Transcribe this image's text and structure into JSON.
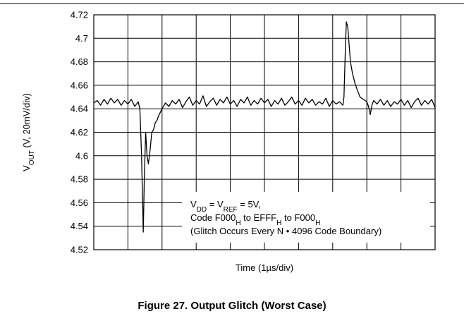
{
  "chart_data": {
    "type": "line",
    "ylabel": [
      {
        "text": "V"
      },
      {
        "sub": "OUT"
      },
      {
        "text": " (V, 20mV/div)"
      }
    ],
    "xlabel": "Time (1µs/div)",
    "caption": "Figure 27. Output Glitch (Worst Case)",
    "annotation": [
      [
        {
          "text": "V"
        },
        {
          "sub": "DD"
        },
        {
          "text": " = V"
        },
        {
          "sub": "REF"
        },
        {
          "text": " = 5V,"
        }
      ],
      [
        {
          "text": "Code F000"
        },
        {
          "sub": "H"
        },
        {
          "text": " to EFFF"
        },
        {
          "sub": "H"
        },
        {
          "text": " to F000"
        },
        {
          "sub": "H"
        }
      ],
      [
        {
          "text": "(Glitch Occurs Every N • 4096 Code Boundary)"
        }
      ]
    ],
    "xlim": [
      0,
      10
    ],
    "xticks": [
      0,
      1,
      2,
      3,
      4,
      5,
      6,
      7,
      8,
      9,
      10
    ],
    "xtick_labels": false,
    "ylim": [
      4.52,
      4.72
    ],
    "yticks": [
      4.52,
      4.54,
      4.56,
      4.58,
      4.6,
      4.62,
      4.64,
      4.66,
      4.68,
      4.7,
      4.72
    ],
    "grid": true,
    "color": "#000000",
    "x": [
      0,
      0.1,
      0.2,
      0.3,
      0.4,
      0.5,
      0.6,
      0.7,
      0.8,
      0.9,
      1,
      1.1,
      1.2,
      1.3,
      1.35,
      1.4,
      1.45,
      1.48,
      1.52,
      1.56,
      1.6,
      1.65,
      1.7,
      1.75,
      1.8,
      1.85,
      1.9,
      2,
      2.1,
      2.2,
      2.3,
      2.4,
      2.5,
      2.6,
      2.7,
      2.8,
      2.9,
      3,
      3.1,
      3.2,
      3.3,
      3.4,
      3.5,
      3.6,
      3.7,
      3.8,
      3.9,
      4,
      4.1,
      4.2,
      4.3,
      4.4,
      4.5,
      4.6,
      4.7,
      4.8,
      4.9,
      5,
      5.1,
      5.2,
      5.3,
      5.4,
      5.5,
      5.6,
      5.7,
      5.8,
      5.9,
      6,
      6.1,
      6.2,
      6.3,
      6.4,
      6.5,
      6.6,
      6.7,
      6.8,
      6.9,
      7,
      7.1,
      7.2,
      7.3,
      7.33,
      7.37,
      7.4,
      7.44,
      7.48,
      7.52,
      7.58,
      7.65,
      7.72,
      7.8,
      7.9,
      8,
      8.05,
      8.1,
      8.15,
      8.2,
      8.3,
      8.4,
      8.5,
      8.6,
      8.7,
      8.8,
      8.9,
      9,
      9.1,
      9.2,
      9.3,
      9.4,
      9.5,
      9.6,
      9.7,
      9.8,
      9.9,
      10
    ],
    "values": [
      4.645,
      4.647,
      4.643,
      4.648,
      4.644,
      4.649,
      4.645,
      4.648,
      4.643,
      4.647,
      4.644,
      4.648,
      4.642,
      4.646,
      4.64,
      4.6,
      4.535,
      4.58,
      4.62,
      4.6,
      4.593,
      4.605,
      4.62,
      4.622,
      4.628,
      4.63,
      4.634,
      4.64,
      4.645,
      4.642,
      4.647,
      4.644,
      4.648,
      4.641,
      4.646,
      4.65,
      4.643,
      4.647,
      4.644,
      4.651,
      4.642,
      4.646,
      4.649,
      4.643,
      4.648,
      4.645,
      4.65,
      4.644,
      4.647,
      4.642,
      4.648,
      4.645,
      4.65,
      4.643,
      4.647,
      4.644,
      4.649,
      4.645,
      4.648,
      4.642,
      4.647,
      4.644,
      4.649,
      4.643,
      4.646,
      4.65,
      4.644,
      4.647,
      4.643,
      4.649,
      4.645,
      4.648,
      4.643,
      4.646,
      4.644,
      4.649,
      4.642,
      4.647,
      4.644,
      4.646,
      4.643,
      4.65,
      4.69,
      4.714,
      4.71,
      4.695,
      4.68,
      4.67,
      4.662,
      4.656,
      4.65,
      4.648,
      4.646,
      4.642,
      4.635,
      4.643,
      4.647,
      4.644,
      4.648,
      4.643,
      4.647,
      4.642,
      4.646,
      4.644,
      4.648,
      4.643,
      4.647,
      4.641,
      4.646,
      4.649,
      4.643,
      4.647,
      4.644,
      4.648,
      4.641
    ]
  }
}
